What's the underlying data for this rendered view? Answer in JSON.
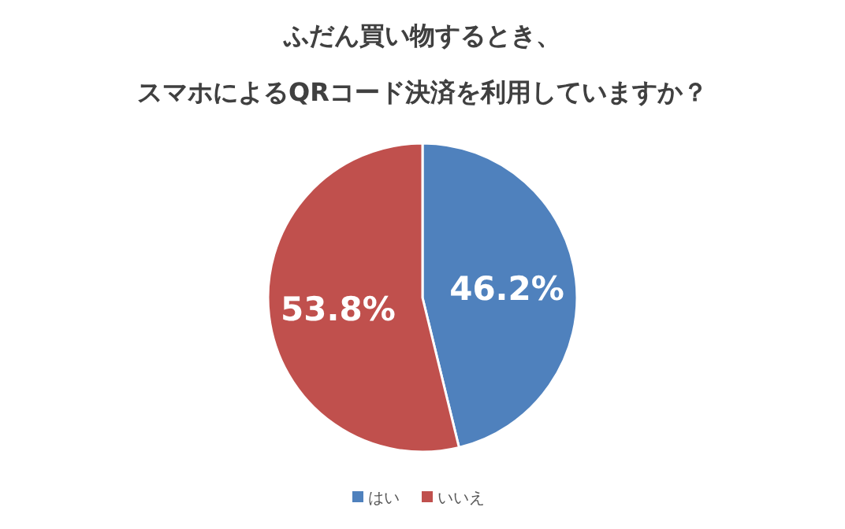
{
  "chart_data": {
    "type": "pie",
    "title": "ふだん買い物するとき、スマホによるQRコード決済を利用していますか？",
    "categories": [
      "はい",
      "いいえ"
    ],
    "values": [
      46.2,
      53.8
    ],
    "colors": [
      "#4f81bd",
      "#c0504d"
    ],
    "value_labels": [
      "46.2%",
      "53.8%"
    ],
    "legend": "bottom"
  }
}
